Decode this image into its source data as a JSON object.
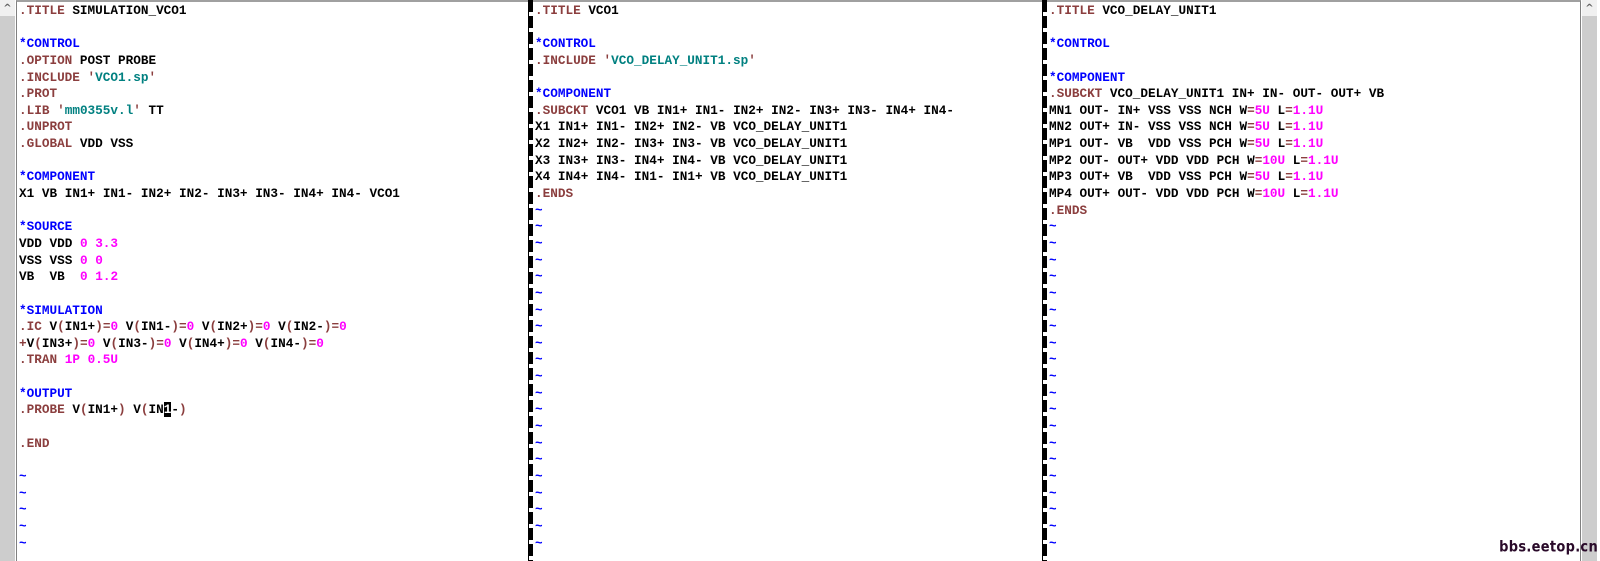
{
  "editor": "vim",
  "colors": {
    "keyword": "#8b3e3e",
    "comment": "#0000ff",
    "string": "#008080",
    "number": "#ff00ff",
    "text": "#000000"
  },
  "total_rows": 33,
  "panes": [
    {
      "name": "left",
      "lines": [
        ".TITLE SIMULATION_VCO1",
        "",
        "*CONTROL",
        ".OPTION POST PROBE",
        ".INCLUDE 'VCO1.sp'",
        ".PROT",
        ".LIB 'mm0355v.l' TT",
        ".UNPROT",
        ".GLOBAL VDD VSS",
        "",
        "*COMPONENT",
        "X1 VB IN1+ IN1- IN2+ IN2- IN3+ IN3- IN4+ IN4- VCO1",
        "",
        "*SOURCE",
        "VDD VDD 0 3.3",
        "VSS VSS 0 0",
        "VB  VB  0 1.2",
        "",
        "*SIMULATION",
        ".IC V(IN1+)=0 V(IN1-)=0 V(IN2+)=0 V(IN2-)=0",
        "+V(IN3+)=0 V(IN3-)=0 V(IN4+)=0 V(IN4-)=0",
        ".TRAN 1P 0.5U",
        "",
        "*OUTPUT",
        ".PROBE V(IN1+) V(IN1-)",
        "",
        ".END",
        ""
      ],
      "cursor": {
        "line": 25,
        "col": 20
      }
    },
    {
      "name": "middle",
      "lines": [
        ".TITLE VCO1",
        "",
        "*CONTROL",
        ".INCLUDE 'VCO_DELAY_UNIT1.sp'",
        "",
        "*COMPONENT",
        ".SUBCKT VCO1 VB IN1+ IN1- IN2+ IN2- IN3+ IN3- IN4+ IN4-",
        "X1 IN1+ IN1- IN2+ IN2- VB VCO_DELAY_UNIT1",
        "X2 IN2+ IN2- IN3+ IN3- VB VCO_DELAY_UNIT1",
        "X3 IN3+ IN3- IN4+ IN4- VB VCO_DELAY_UNIT1",
        "X4 IN4+ IN4- IN1- IN1+ VB VCO_DELAY_UNIT1",
        ".ENDS"
      ]
    },
    {
      "name": "right",
      "lines": [
        ".TITLE VCO_DELAY_UNIT1",
        "",
        "*CONTROL",
        "",
        "*COMPONENT",
        ".SUBCKT VCO_DELAY_UNIT1 IN+ IN- OUT- OUT+ VB",
        "MN1 OUT- IN+ VSS VSS NCH W=5U L=1.1U",
        "MN2 OUT+ IN- VSS VSS NCH W=5U L=1.1U",
        "MP1 OUT- VB  VDD VSS PCH W=5U L=1.1U",
        "MP2 OUT- OUT+ VDD VDD PCH W=10U L=1.1U",
        "MP3 OUT+ VB  VDD VSS PCH W=5U L=1.1U",
        "MP4 OUT+ OUT- VDD VDD PCH W=10U L=1.1U",
        ".ENDS"
      ]
    }
  ],
  "empty_line_marker": "~",
  "icons": {
    "scroll_up": "chevron-up-icon"
  },
  "scroll_up_glyph": "^",
  "watermark": "bbs.eetop.cn"
}
